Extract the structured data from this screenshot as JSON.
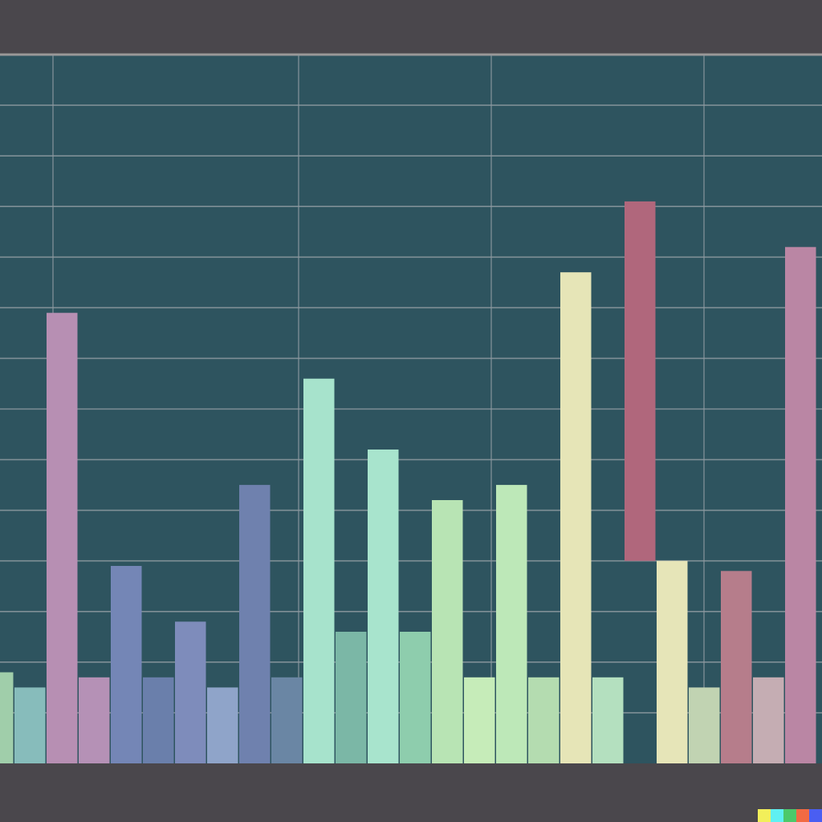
{
  "colors": {
    "background": "#4a474c",
    "plot_background": "#2e545f",
    "grid": "#8e9aa0",
    "frame_top": "#9a9898"
  },
  "chart_data": {
    "type": "bar",
    "title": "",
    "xlabel": "",
    "ylabel": "",
    "ylim": [
      0,
      14
    ],
    "grid": true,
    "legend": "none",
    "bars": [
      {
        "value": 1.8,
        "color": "#a0ceaa"
      },
      {
        "value": 1.5,
        "color": "#87bcbb"
      },
      {
        "value": 8.9,
        "color": "#b78fb3"
      },
      {
        "value": 1.7,
        "color": "#b591b6"
      },
      {
        "value": 3.9,
        "color": "#7486b6"
      },
      {
        "value": 1.7,
        "color": "#6a7fab"
      },
      {
        "value": 2.8,
        "color": "#7e8cbb"
      },
      {
        "value": 1.5,
        "color": "#8fa4c9"
      },
      {
        "value": 5.5,
        "color": "#6f81ae"
      },
      {
        "value": 1.7,
        "color": "#6a86a4"
      },
      {
        "value": 7.6,
        "color": "#a7e3cc"
      },
      {
        "value": 2.6,
        "color": "#7bb7a6"
      },
      {
        "value": 6.2,
        "color": "#a8e4cd"
      },
      {
        "value": 2.6,
        "color": "#8ecdad"
      },
      {
        "value": 5.2,
        "color": "#b8e4b4"
      },
      {
        "value": 1.7,
        "color": "#c6ecb9"
      },
      {
        "value": 5.5,
        "color": "#bde8b8"
      },
      {
        "value": 1.7,
        "color": "#b4dcb0"
      },
      {
        "value": 9.7,
        "color": "#e6e5b7"
      },
      {
        "value": 1.7,
        "color": "#b4e0bf"
      },
      {
        "value": 11.1,
        "color": "#b0677c",
        "base": 4.0
      },
      {
        "value": 4.0,
        "color": "#e6e5b8"
      },
      {
        "value": 1.5,
        "color": "#c1d3b2"
      },
      {
        "value": 3.8,
        "color": "#b67d8b"
      },
      {
        "value": 1.7,
        "color": "#c5adb3"
      },
      {
        "value": 10.2,
        "color": "#ba86a4"
      }
    ]
  },
  "watermark": {
    "colors": [
      "#f2ef5a",
      "#5ff0f2",
      "#4cc96a",
      "#f26a43",
      "#4a5ef2"
    ]
  }
}
